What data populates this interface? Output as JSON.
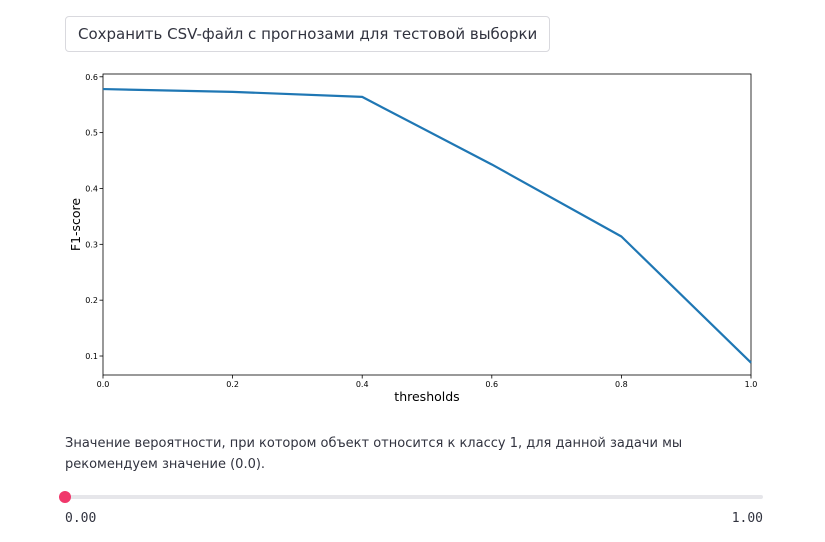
{
  "download_button": {
    "label": "Сохранить CSV-файл с прогнозами для тестовой выборки"
  },
  "chart_data": {
    "type": "line",
    "xlabel": "thresholds",
    "ylabel": "F1-score",
    "xlim": [
      0.0,
      1.0
    ],
    "ylim": [
      0.066,
      0.605
    ],
    "xticks": [
      "0.0",
      "0.2",
      "0.4",
      "0.6",
      "0.8",
      "1.0"
    ],
    "yticks": [
      "0.1",
      "0.2",
      "0.3",
      "0.4",
      "0.5",
      "0.6"
    ],
    "grid": false,
    "series": [
      {
        "color": "#1f77b4",
        "x": [
          0.0,
          0.2,
          0.4,
          0.6,
          0.8,
          1.0
        ],
        "y": [
          0.578,
          0.573,
          0.564,
          0.443,
          0.314,
          0.088
        ]
      }
    ]
  },
  "slider": {
    "label": "Значение вероятности, при котором объект относится к классу 1, для данной задачи мы рекомендуем значение (0.0).",
    "value": 0.0,
    "min_label": "0.00",
    "max_label": "1.00",
    "min": 0.0,
    "max": 1.0
  }
}
